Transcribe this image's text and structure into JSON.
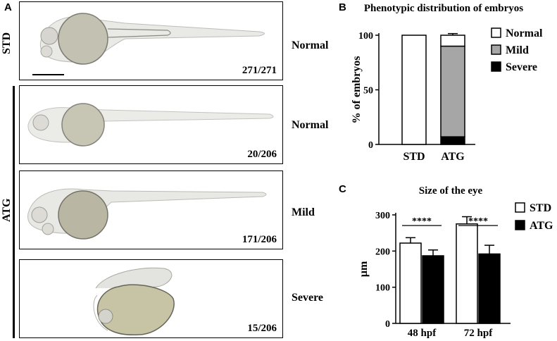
{
  "panelA": {
    "letter": "A",
    "std_label": "STD",
    "atg_label": "ATG",
    "rows": [
      {
        "category": "Normal",
        "count": "271/271"
      },
      {
        "category": "Normal",
        "count": "20/206"
      },
      {
        "category": "Mild",
        "count": "171/206"
      },
      {
        "category": "Severe",
        "count": "15/206"
      }
    ]
  },
  "panelB": {
    "letter": "B"
  },
  "panelC": {
    "letter": "C"
  },
  "chart_data": [
    {
      "type": "bar",
      "stacked": true,
      "title": "Phenotypic distribution of embryos",
      "xlabel": "",
      "ylabel": "% of embryos",
      "categories": [
        "STD",
        "ATG"
      ],
      "ylim": [
        0,
        100
      ],
      "yticks": [
        0,
        50,
        100
      ],
      "legend_position": "right",
      "series": [
        {
          "name": "Severe",
          "values": [
            0,
            7
          ],
          "errors": [
            0,
            1
          ],
          "color": "#000000"
        },
        {
          "name": "Mild",
          "values": [
            0,
            83
          ],
          "errors": [
            0,
            1.5
          ],
          "color": "#a6a6a6"
        },
        {
          "name": "Normal",
          "values": [
            100,
            10
          ],
          "errors": [
            0,
            1.5
          ],
          "color": "#ffffff"
        }
      ]
    },
    {
      "type": "bar",
      "title": "Size of the eye",
      "xlabel": "",
      "ylabel": "µm",
      "categories": [
        "48 hpf",
        "72 hpf"
      ],
      "ylim": [
        0,
        300
      ],
      "yticks": [
        0,
        100,
        200,
        300
      ],
      "legend_position": "top-right",
      "significance": [
        "****",
        "****"
      ],
      "series": [
        {
          "name": "STD",
          "values": [
            222,
            275
          ],
          "errors": [
            15,
            20
          ],
          "color": "#ffffff"
        },
        {
          "name": "ATG",
          "values": [
            187,
            192
          ],
          "errors": [
            16,
            24
          ],
          "color": "#000000"
        }
      ]
    }
  ]
}
